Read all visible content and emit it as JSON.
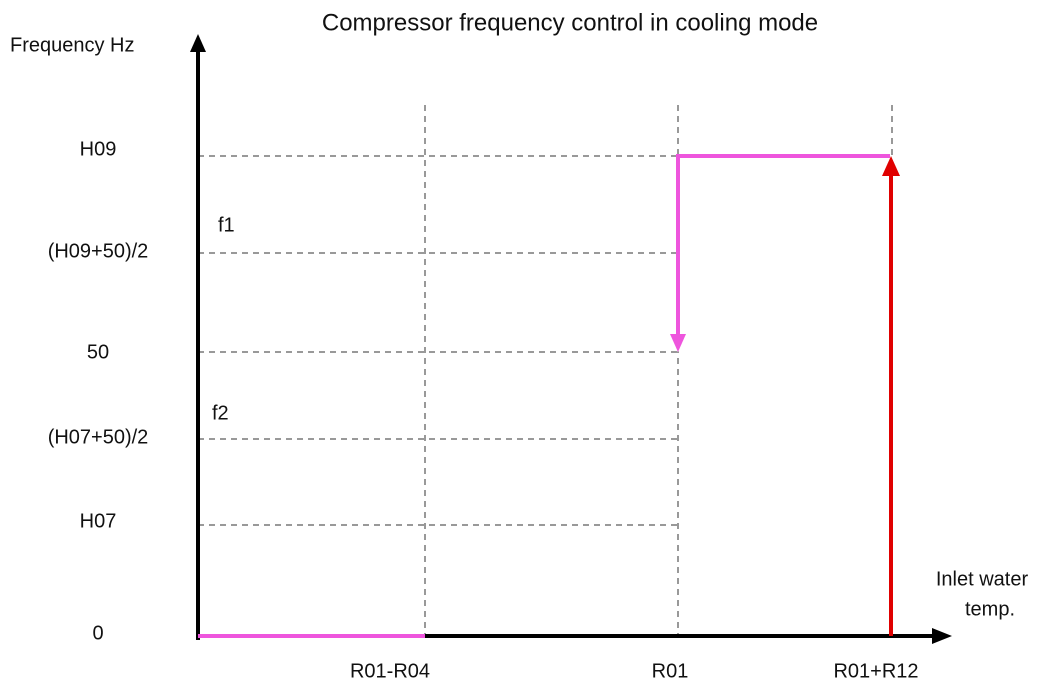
{
  "title": "Compressor frequency control in cooling mode",
  "y_axis": {
    "label": "Frequency Hz",
    "levels": [
      "H09",
      "(H09+50)/2",
      "50",
      "(H07+50)/2",
      "H07",
      "0"
    ]
  },
  "x_axis": {
    "label": [
      "Inlet water",
      "temp."
    ],
    "levels": [
      "R01-R04",
      "R01",
      "R01+R12"
    ]
  },
  "annotations": [
    "f1",
    "f2"
  ]
}
